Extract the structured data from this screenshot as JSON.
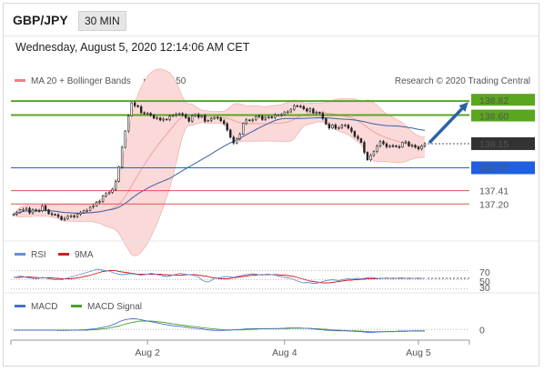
{
  "header": {
    "symbol": "GBP/JPY",
    "timeframe": "30 MIN",
    "datetime": "Wednesday, August 5, 2020 12:14:06 AM CET"
  },
  "colors": {
    "candle": "#222222",
    "bollinger_fill": "#fbd9d9",
    "ma20": "#f0a0a0",
    "ma50": "#3a5fa8",
    "resistance": "#5aa61e",
    "pivot": "#1f5fe0",
    "support": "#e05555",
    "arrow": "#2b63a8",
    "last_price_bg": "#333333",
    "rsi": "#6b8dd6",
    "rsi_ma": "#d02020",
    "macd": "#4a6fc9",
    "macd_signal": "#4aa02a"
  },
  "chart_data": [
    {
      "type": "candlestick",
      "panel": "price",
      "legend": [
        {
          "name": "MA 20 + Bollinger Bands",
          "color": "#f08080"
        },
        {
          "name": "MA 50",
          "color": "#3a5fa8"
        }
      ],
      "source": "Research © 2020 Trading Central",
      "ylim": [
        136.86,
        138.98
      ],
      "x_ticks": [
        {
          "label": "Aug 2",
          "index": 42
        },
        {
          "label": "Aug 4",
          "index": 85
        },
        {
          "label": "Aug 5",
          "index": 127
        }
      ],
      "candles_count": 130,
      "candles_close": [
        137.04,
        137.062,
        137.111,
        137.115,
        137.133,
        137.059,
        137.107,
        137.097,
        137.091,
        137.169,
        137.109,
        137.046,
        137.038,
        137.028,
        137.002,
        136.953,
        136.972,
        137.005,
        137.014,
        136.998,
        137.039,
        137.062,
        137.095,
        137.098,
        137.153,
        137.171,
        137.23,
        137.238,
        137.327,
        137.364,
        137.384,
        137.43,
        137.558,
        137.783,
        138.091,
        138.349,
        138.586,
        138.794,
        138.748,
        138.733,
        138.638,
        138.625,
        138.625,
        138.598,
        138.553,
        138.555,
        138.521,
        138.536,
        138.532,
        138.582,
        138.597,
        138.612,
        138.622,
        138.606,
        138.56,
        138.505,
        138.588,
        138.608,
        138.567,
        138.592,
        138.504,
        138.518,
        138.543,
        138.566,
        138.555,
        138.51,
        138.466,
        138.364,
        138.251,
        138.16,
        138.228,
        138.299,
        138.47,
        138.524,
        138.516,
        138.524,
        138.577,
        138.583,
        138.531,
        138.562,
        138.571,
        138.564,
        138.601,
        138.602,
        138.605,
        138.65,
        138.65,
        138.693,
        138.747,
        138.741,
        138.736,
        138.698,
        138.663,
        138.698,
        138.633,
        138.643,
        138.628,
        138.545,
        138.457,
        138.396,
        138.445,
        138.392,
        138.404,
        138.439,
        138.441,
        138.394,
        138.343,
        138.262,
        138.229,
        138.17,
        138.013,
        137.895,
        137.963,
        138.025,
        138.111,
        138.185,
        138.148,
        138.1,
        138.118,
        138.117,
        138.103,
        138.097,
        138.172,
        138.177,
        138.114,
        138.123,
        138.094,
        138.067,
        138.112,
        138.15
      ],
      "levels": [
        {
          "label": "138.82",
          "value": 138.82,
          "role": "resistance"
        },
        {
          "label": "138.60",
          "value": 138.6,
          "role": "resistance"
        },
        {
          "label": "138.15",
          "value": 138.15,
          "role": "last"
        },
        {
          "label": "137.77",
          "value": 137.77,
          "role": "pivot"
        },
        {
          "label": "137.41",
          "value": 137.41,
          "role": "support"
        },
        {
          "label": "137.20",
          "value": 137.2,
          "role": "support"
        }
      ],
      "forecast": {
        "from": 138.15,
        "to": 138.82,
        "direction": "up"
      }
    },
    {
      "type": "line",
      "panel": "rsi",
      "legend": [
        {
          "name": "RSI",
          "color": "#6b8dd6"
        },
        {
          "name": "9MA",
          "color": "#d02020"
        }
      ],
      "levels": [
        {
          "label": "70",
          "value": 70
        },
        {
          "label": "50",
          "value": 50
        },
        {
          "label": "30",
          "value": 30
        }
      ],
      "ylim": [
        25,
        75
      ],
      "series": [
        {
          "name": "RSI",
          "values": [
            55,
            56,
            58,
            57,
            55,
            54,
            53,
            52,
            53,
            55,
            54,
            52,
            51,
            50,
            51,
            50,
            52,
            54,
            56,
            58,
            60,
            62,
            64,
            66,
            68,
            70,
            73,
            72,
            71,
            70,
            69,
            66,
            64,
            62,
            61,
            62,
            63,
            63,
            62,
            61,
            60,
            61,
            62,
            64,
            63,
            61,
            60,
            58,
            57,
            58,
            60,
            62,
            64,
            63,
            62,
            61,
            60,
            58,
            56,
            50,
            46,
            45,
            48,
            53,
            54,
            55,
            56,
            57,
            56,
            55,
            57,
            58,
            60,
            61,
            62,
            63,
            62,
            61,
            60,
            62,
            62,
            61,
            60,
            58,
            57,
            55,
            54,
            53,
            50,
            47,
            45,
            43,
            44,
            43,
            42,
            42,
            44,
            46,
            48,
            49,
            50,
            49,
            48,
            50,
            51,
            52,
            51,
            52,
            53,
            52,
            53,
            54,
            55,
            54,
            53,
            52,
            53,
            54,
            53,
            52,
            53,
            54,
            54,
            53,
            52,
            53,
            53,
            52,
            53,
            53
          ]
        },
        {
          "name": "9MA",
          "values": [
            55,
            55,
            55,
            56,
            56,
            56,
            55,
            55,
            54,
            54,
            54,
            54,
            54,
            53,
            53,
            52,
            52,
            52,
            52,
            53,
            54,
            55,
            57,
            58,
            60,
            62,
            64,
            66,
            68,
            69,
            70,
            70,
            70,
            68,
            67,
            66,
            65,
            64,
            63,
            62,
            62,
            62,
            62,
            62,
            62,
            62,
            62,
            61,
            61,
            60,
            60,
            60,
            60,
            60,
            61,
            61,
            61,
            61,
            60,
            59,
            58,
            57,
            55,
            54,
            53,
            52,
            52,
            52,
            53,
            54,
            55,
            56,
            57,
            58,
            59,
            60,
            60,
            61,
            61,
            61,
            61,
            61,
            61,
            61,
            60,
            60,
            59,
            58,
            57,
            55,
            53,
            51,
            49,
            47,
            46,
            45,
            44,
            43,
            43,
            43,
            44,
            45,
            46,
            47,
            48,
            49,
            49,
            50,
            50,
            51,
            51,
            52,
            52,
            52,
            52,
            53,
            53,
            53,
            53,
            53,
            53,
            53,
            53,
            53,
            53,
            53,
            53,
            53,
            53,
            53
          ]
        }
      ]
    },
    {
      "type": "line",
      "panel": "macd",
      "legend": [
        {
          "name": "MACD",
          "color": "#4a6fc9"
        },
        {
          "name": "MACD Signal",
          "color": "#4aa02a"
        }
      ],
      "levels": [
        {
          "label": "0",
          "value": 0
        }
      ],
      "ylim": [
        -0.28,
        0.5
      ],
      "series": [
        {
          "name": "MACD",
          "values": [
            -0.02,
            -0.02,
            -0.02,
            -0.02,
            -0.02,
            -0.02,
            -0.02,
            -0.02,
            -0.02,
            -0.02,
            -0.02,
            -0.02,
            -0.02,
            -0.02,
            -0.03,
            -0.03,
            -0.03,
            -0.03,
            -0.02,
            -0.02,
            -0.02,
            -0.01,
            -0.01,
            0.0,
            0.01,
            0.02,
            0.03,
            0.05,
            0.07,
            0.09,
            0.11,
            0.15,
            0.19,
            0.24,
            0.28,
            0.31,
            0.33,
            0.34,
            0.34,
            0.33,
            0.31,
            0.29,
            0.27,
            0.25,
            0.23,
            0.21,
            0.19,
            0.17,
            0.15,
            0.14,
            0.12,
            0.11,
            0.1,
            0.09,
            0.08,
            0.06,
            0.05,
            0.04,
            0.03,
            0.02,
            0.0,
            -0.01,
            -0.02,
            -0.03,
            -0.03,
            -0.03,
            -0.03,
            -0.02,
            -0.02,
            -0.01,
            0.0,
            0.0,
            0.01,
            0.02,
            0.02,
            0.03,
            0.03,
            0.03,
            0.03,
            0.03,
            0.03,
            0.03,
            0.03,
            0.03,
            0.04,
            0.04,
            0.05,
            0.05,
            0.05,
            0.05,
            0.05,
            0.04,
            0.04,
            0.03,
            0.02,
            0.01,
            0.0,
            -0.01,
            -0.02,
            -0.03,
            -0.03,
            -0.04,
            -0.04,
            -0.04,
            -0.04,
            -0.05,
            -0.05,
            -0.06,
            -0.06,
            -0.07,
            -0.08,
            -0.09,
            -0.09,
            -0.09,
            -0.08,
            -0.08,
            -0.07,
            -0.07,
            -0.06,
            -0.06,
            -0.06,
            -0.05,
            -0.05,
            -0.05,
            -0.05,
            -0.04,
            -0.04,
            -0.04,
            -0.04,
            -0.04
          ]
        },
        {
          "name": "MACD Signal",
          "values": [
            -0.02,
            -0.02,
            -0.02,
            -0.02,
            -0.02,
            -0.02,
            -0.02,
            -0.02,
            -0.02,
            -0.02,
            -0.02,
            -0.02,
            -0.02,
            -0.02,
            -0.02,
            -0.02,
            -0.02,
            -0.02,
            -0.02,
            -0.02,
            -0.02,
            -0.02,
            -0.02,
            -0.02,
            -0.01,
            -0.01,
            0.0,
            0.01,
            0.02,
            0.03,
            0.05,
            0.07,
            0.09,
            0.11,
            0.14,
            0.17,
            0.2,
            0.22,
            0.24,
            0.26,
            0.27,
            0.27,
            0.27,
            0.27,
            0.26,
            0.25,
            0.24,
            0.23,
            0.21,
            0.2,
            0.18,
            0.17,
            0.15,
            0.14,
            0.13,
            0.11,
            0.1,
            0.09,
            0.08,
            0.06,
            0.05,
            0.04,
            0.03,
            0.02,
            0.01,
            0.0,
            -0.01,
            -0.01,
            -0.01,
            -0.01,
            -0.01,
            -0.01,
            -0.01,
            0.0,
            0.0,
            0.01,
            0.01,
            0.02,
            0.02,
            0.02,
            0.02,
            0.03,
            0.03,
            0.03,
            0.03,
            0.03,
            0.03,
            0.04,
            0.04,
            0.04,
            0.04,
            0.04,
            0.04,
            0.04,
            0.03,
            0.03,
            0.02,
            0.01,
            0.01,
            0.0,
            -0.01,
            -0.02,
            -0.02,
            -0.03,
            -0.03,
            -0.04,
            -0.04,
            -0.04,
            -0.05,
            -0.05,
            -0.06,
            -0.06,
            -0.07,
            -0.07,
            -0.07,
            -0.07,
            -0.07,
            -0.07,
            -0.07,
            -0.07,
            -0.06,
            -0.06,
            -0.06,
            -0.06,
            -0.05,
            -0.05,
            -0.05,
            -0.05,
            -0.05,
            -0.05
          ]
        }
      ]
    }
  ]
}
